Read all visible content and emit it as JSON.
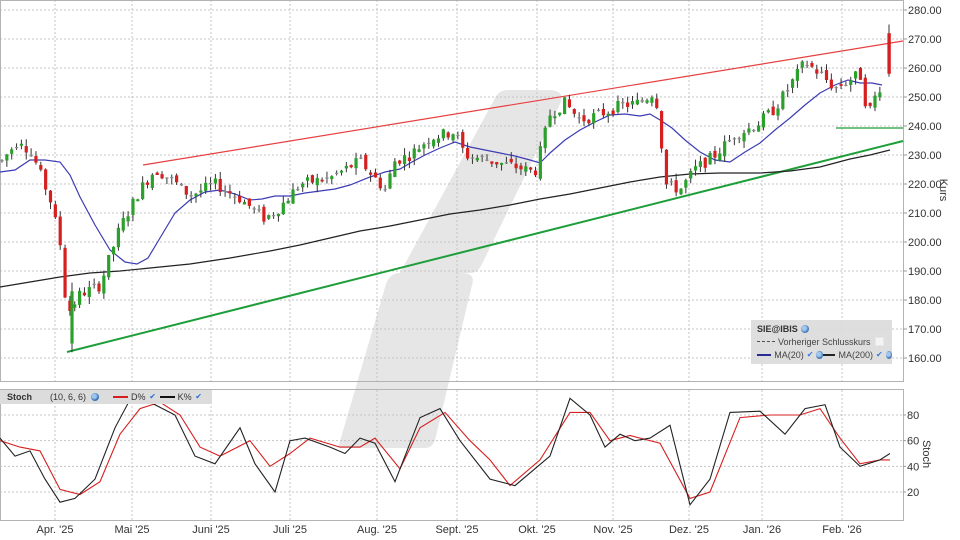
{
  "symbol": "SIE@IBIS",
  "main_panel": {
    "axis_title": "Kurs",
    "y_ticks": [
      "280.00",
      "270.00",
      "260.00",
      "250.00",
      "240.00",
      "230.00",
      "220.00",
      "210.00",
      "200.00",
      "190.00",
      "180.00",
      "170.00",
      "160.00"
    ],
    "legend": {
      "title": "SIE@IBIS",
      "prev_close_label": "Vorheriger Schlusskurs",
      "ma20_label": "MA(20)",
      "ma200_label": "MA(200)"
    }
  },
  "stoch_panel": {
    "label": "Stoch",
    "params": "(10, 6, 6)",
    "d_label": "D%",
    "k_label": "K%",
    "axis_title": "Stoch",
    "y_ticks": [
      "80",
      "60",
      "40",
      "20"
    ]
  },
  "x_axis": {
    "months": [
      "Apr. '25",
      "Mai '25",
      "Juni '25",
      "Juli '25",
      "Aug. '25",
      "Sept. '25",
      "Okt. '25",
      "Nov. '25",
      "Dez. '25",
      "Jan. '26",
      "Feb. '26"
    ]
  },
  "colors": {
    "up": "#2ca02c",
    "down": "#d62020",
    "neutral": "#8c8c8c",
    "ma20": "#3c3cb4",
    "ma200": "#222222",
    "resistance": "#e84040",
    "support": "#1e9e3a",
    "stoch_d": "#d62020",
    "stoch_k": "#222222",
    "grid": "#bbbbbb"
  },
  "chart_data": [
    {
      "type": "candlestick",
      "title": "SIE@IBIS",
      "ylabel": "Kurs",
      "ylim": [
        155,
        282
      ],
      "x_ticks": [
        "Apr. '25",
        "Mai '25",
        "Juni '25",
        "Juli '25",
        "Aug. '25",
        "Sept. '25",
        "Okt. '25",
        "Nov. '25",
        "Dez. '25",
        "Jan. '26",
        "Feb. '26"
      ],
      "grid": true,
      "approx_monthly_close": {
        "Mar '25": 228,
        "Apr. '25": 185,
        "Mai '25": 220,
        "Juni '25": 213,
        "Juli '25": 222,
        "Aug. '25": 233,
        "Sept. '25": 226,
        "Okt. '25": 245,
        "Nov. '25": 222,
        "Dez. '25": 238,
        "Jan. '26": 257,
        "Feb. '26": 268
      },
      "lows_highs": {
        "low": 162,
        "low_date": "Apr. '25",
        "high": 275,
        "high_date": "Feb. '26"
      },
      "series": [
        {
          "name": "MA(20)",
          "approx": [
            [
              0,
              224
            ],
            [
              40,
              228
            ],
            [
              80,
              205
            ],
            [
              110,
              193
            ],
            [
              140,
              194
            ],
            [
              180,
              215
            ],
            [
              220,
              219
            ],
            [
              260,
              213
            ],
            [
              300,
              216
            ],
            [
              340,
              218
            ],
            [
              380,
              225
            ],
            [
              420,
              229
            ],
            [
              460,
              237
            ],
            [
              500,
              229
            ],
            [
              540,
              228
            ],
            [
              580,
              240
            ],
            [
              620,
              245
            ],
            [
              650,
              244
            ],
            [
              690,
              236
            ],
            [
              730,
              228
            ],
            [
              770,
              238
            ],
            [
              810,
              248
            ],
            [
              850,
              258
            ],
            [
              880,
              256
            ]
          ]
        },
        {
          "name": "MA(200)",
          "approx": [
            [
              0,
              184
            ],
            [
              100,
              190
            ],
            [
              200,
              196
            ],
            [
              300,
              201
            ],
            [
              400,
              208
            ],
            [
              500,
              214
            ],
            [
              600,
              220
            ],
            [
              650,
              222
            ],
            [
              700,
              224
            ],
            [
              760,
              224
            ],
            [
              820,
              226
            ],
            [
              890,
              232
            ]
          ]
        },
        {
          "name": "Resistance trendline",
          "from": [
            143,
            226.5
          ],
          "to": [
            903,
            269
          ]
        },
        {
          "name": "Support trendline",
          "from": [
            67,
            162
          ],
          "to": [
            903,
            235
          ]
        },
        {
          "name": "Horizontal support",
          "value": 240,
          "from_x": 836,
          "to_x": 903
        }
      ],
      "legend": [
        "SIE@IBIS",
        "Vorheriger Schlusskurs",
        "MA(20)",
        "MA(200)"
      ]
    },
    {
      "type": "line",
      "title": "Stoch (10, 6, 6)",
      "ylabel": "Stoch",
      "ylim": [
        0,
        100
      ],
      "y_ticks": [
        20,
        40,
        60,
        80
      ],
      "series": [
        {
          "name": "K%",
          "approx_points": [
            [
              0,
              62
            ],
            [
              15,
              48
            ],
            [
              30,
              52
            ],
            [
              45,
              30
            ],
            [
              60,
              12
            ],
            [
              75,
              15
            ],
            [
              95,
              30
            ],
            [
              115,
              70
            ],
            [
              130,
              92
            ],
            [
              150,
              90
            ],
            [
              175,
              80
            ],
            [
              195,
              48
            ],
            [
              215,
              42
            ],
            [
              240,
              70
            ],
            [
              255,
              42
            ],
            [
              275,
              20
            ],
            [
              290,
              60
            ],
            [
              305,
              62
            ],
            [
              330,
              55
            ],
            [
              345,
              50
            ],
            [
              360,
              62
            ],
            [
              375,
              58
            ],
            [
              395,
              28
            ],
            [
              420,
              78
            ],
            [
              440,
              85
            ],
            [
              460,
              60
            ],
            [
              490,
              30
            ],
            [
              515,
              25
            ],
            [
              550,
              48
            ],
            [
              570,
              93
            ],
            [
              590,
              80
            ],
            [
              605,
              55
            ],
            [
              620,
              65
            ],
            [
              635,
              60
            ],
            [
              650,
              62
            ],
            [
              670,
              72
            ],
            [
              690,
              10
            ],
            [
              710,
              30
            ],
            [
              730,
              82
            ],
            [
              760,
              83
            ],
            [
              785,
              65
            ],
            [
              805,
              85
            ],
            [
              825,
              88
            ],
            [
              840,
              55
            ],
            [
              860,
              40
            ],
            [
              880,
              45
            ],
            [
              890,
              50
            ]
          ]
        },
        {
          "name": "D%",
          "approx_points": [
            [
              0,
              60
            ],
            [
              20,
              55
            ],
            [
              40,
              52
            ],
            [
              60,
              22
            ],
            [
              80,
              18
            ],
            [
              100,
              28
            ],
            [
              120,
              65
            ],
            [
              140,
              85
            ],
            [
              160,
              90
            ],
            [
              180,
              80
            ],
            [
              200,
              55
            ],
            [
              220,
              48
            ],
            [
              250,
              60
            ],
            [
              270,
              40
            ],
            [
              290,
              50
            ],
            [
              310,
              62
            ],
            [
              340,
              55
            ],
            [
              360,
              55
            ],
            [
              375,
              62
            ],
            [
              400,
              38
            ],
            [
              420,
              70
            ],
            [
              445,
              82
            ],
            [
              470,
              60
            ],
            [
              490,
              45
            ],
            [
              510,
              25
            ],
            [
              540,
              45
            ],
            [
              570,
              82
            ],
            [
              590,
              82
            ],
            [
              610,
              60
            ],
            [
              630,
              64
            ],
            [
              660,
              58
            ],
            [
              690,
              15
            ],
            [
              710,
              20
            ],
            [
              740,
              78
            ],
            [
              770,
              80
            ],
            [
              800,
              80
            ],
            [
              820,
              85
            ],
            [
              840,
              62
            ],
            [
              860,
              42
            ],
            [
              880,
              45
            ],
            [
              890,
              45
            ]
          ]
        }
      ],
      "legend": [
        "D%",
        "K%"
      ]
    }
  ]
}
